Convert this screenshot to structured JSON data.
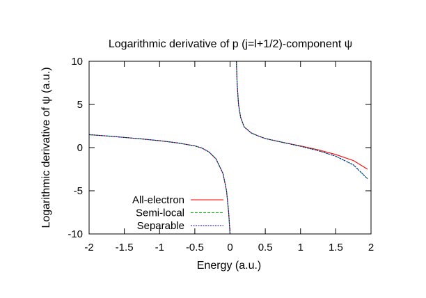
{
  "chart_data": {
    "type": "line",
    "title": "Logarithmic derivative of p (j=l+1/2)-component ψ",
    "xlabel": "Energy (a.u.)",
    "ylabel": "Logarithmic derivative of ψ (a.u.)",
    "xlim": [
      -2,
      2
    ],
    "ylim": [
      -10,
      10
    ],
    "x_ticks": [
      -2,
      -1.5,
      -1,
      -0.5,
      0,
      0.5,
      1,
      1.5,
      2
    ],
    "x_tick_labels": [
      "-2",
      "-1.5",
      "-1",
      "-0.5",
      "0",
      "0.5",
      "1",
      "1.5",
      "2"
    ],
    "y_ticks": [
      -10,
      -5,
      0,
      5,
      10
    ],
    "y_tick_labels": [
      "-10",
      "-5",
      "0",
      "5",
      "10"
    ],
    "grid": false,
    "legend_position": "bottom-left",
    "series": [
      {
        "name": "All-electron",
        "color": "#ff0000",
        "dash": "solid",
        "segments": [
          [
            [
              -2.0,
              1.5
            ],
            [
              -1.75,
              1.35
            ],
            [
              -1.5,
              1.18
            ],
            [
              -1.25,
              1.0
            ],
            [
              -1.0,
              0.8
            ],
            [
              -0.75,
              0.55
            ],
            [
              -0.5,
              0.2
            ],
            [
              -0.4,
              -0.05
            ],
            [
              -0.3,
              -0.5
            ],
            [
              -0.2,
              -1.3
            ],
            [
              -0.1,
              -3.0
            ],
            [
              -0.05,
              -5.0
            ],
            [
              -0.02,
              -7.5
            ],
            [
              0.0,
              -10.0
            ]
          ],
          [
            [
              0.09,
              10.0
            ],
            [
              0.1,
              7.5
            ],
            [
              0.12,
              5.0
            ],
            [
              0.15,
              3.5
            ],
            [
              0.2,
              2.4
            ],
            [
              0.3,
              1.7
            ],
            [
              0.4,
              1.35
            ],
            [
              0.5,
              1.05
            ],
            [
              0.75,
              0.6
            ],
            [
              1.0,
              0.2
            ],
            [
              1.25,
              -0.25
            ],
            [
              1.5,
              -0.8
            ],
            [
              1.75,
              -1.5
            ],
            [
              1.95,
              -2.5
            ]
          ]
        ]
      },
      {
        "name": "Semi-local",
        "color": "#00bb00",
        "dash": "dashed",
        "segments": [
          [
            [
              -2.0,
              1.5
            ],
            [
              -1.75,
              1.35
            ],
            [
              -1.5,
              1.18
            ],
            [
              -1.25,
              1.0
            ],
            [
              -1.0,
              0.8
            ],
            [
              -0.75,
              0.55
            ],
            [
              -0.5,
              0.2
            ],
            [
              -0.4,
              -0.05
            ],
            [
              -0.3,
              -0.5
            ],
            [
              -0.2,
              -1.3
            ],
            [
              -0.1,
              -3.0
            ],
            [
              -0.05,
              -5.0
            ],
            [
              -0.02,
              -7.5
            ],
            [
              0.0,
              -10.0
            ]
          ],
          [
            [
              0.09,
              10.0
            ],
            [
              0.1,
              7.5
            ],
            [
              0.12,
              5.0
            ],
            [
              0.15,
              3.5
            ],
            [
              0.2,
              2.4
            ],
            [
              0.3,
              1.7
            ],
            [
              0.4,
              1.35
            ],
            [
              0.5,
              1.05
            ],
            [
              0.75,
              0.6
            ],
            [
              1.0,
              0.15
            ],
            [
              1.25,
              -0.35
            ],
            [
              1.5,
              -1.0
            ],
            [
              1.75,
              -2.0
            ],
            [
              1.95,
              -3.6
            ]
          ]
        ]
      },
      {
        "name": "Separable",
        "color": "#0000cc",
        "dash": "dotted",
        "segments": [
          [
            [
              -2.0,
              1.5
            ],
            [
              -1.75,
              1.35
            ],
            [
              -1.5,
              1.18
            ],
            [
              -1.25,
              1.0
            ],
            [
              -1.0,
              0.8
            ],
            [
              -0.75,
              0.55
            ],
            [
              -0.5,
              0.2
            ],
            [
              -0.4,
              -0.05
            ],
            [
              -0.3,
              -0.5
            ],
            [
              -0.2,
              -1.3
            ],
            [
              -0.1,
              -3.0
            ],
            [
              -0.05,
              -5.0
            ],
            [
              -0.02,
              -7.5
            ],
            [
              0.0,
              -10.0
            ]
          ],
          [
            [
              0.09,
              10.0
            ],
            [
              0.1,
              7.5
            ],
            [
              0.12,
              5.0
            ],
            [
              0.15,
              3.5
            ],
            [
              0.2,
              2.4
            ],
            [
              0.3,
              1.7
            ],
            [
              0.4,
              1.35
            ],
            [
              0.5,
              1.05
            ],
            [
              0.75,
              0.6
            ],
            [
              1.0,
              0.15
            ],
            [
              1.25,
              -0.35
            ],
            [
              1.5,
              -1.0
            ],
            [
              1.75,
              -2.0
            ],
            [
              1.95,
              -3.6
            ]
          ]
        ]
      }
    ]
  }
}
